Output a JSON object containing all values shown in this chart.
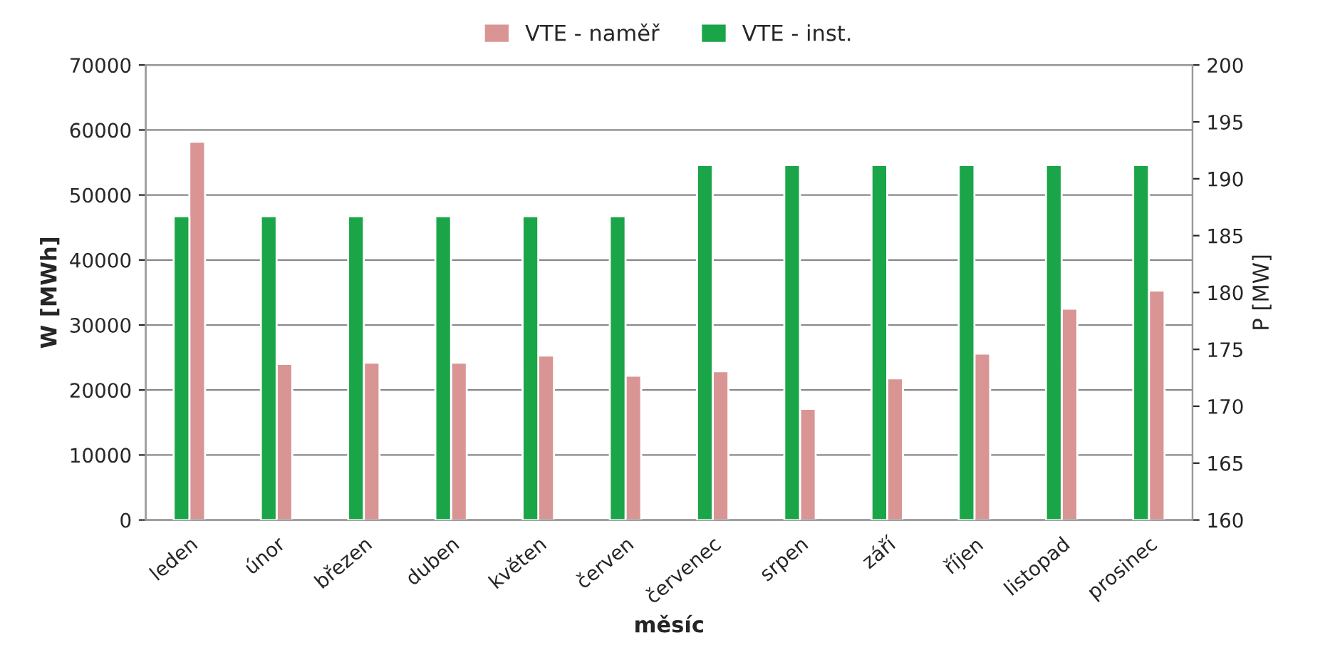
{
  "chart_data": {
    "type": "bar",
    "xlabel": "měsíc",
    "ylabel": "W [MWh]",
    "y2label": "P [MW]",
    "categories": [
      "leden",
      "únor",
      "březen",
      "duben",
      "květen",
      "červen",
      "červenec",
      "srpen",
      "září",
      "říjen",
      "listopad",
      "prosinec"
    ],
    "series": [
      {
        "name": "VTE - naměř",
        "color": "#d99594",
        "values": [
          58200,
          24000,
          24200,
          24200,
          25300,
          22200,
          22900,
          17100,
          21800,
          25600,
          32500,
          35300
        ]
      },
      {
        "name": "VTE - inst.",
        "color": "#1aa548",
        "axis": "y2",
        "values": [
          186.7,
          186.7,
          186.7,
          186.7,
          186.7,
          186.7,
          191.2,
          191.2,
          191.2,
          191.2,
          191.2,
          191.2
        ]
      }
    ],
    "ylim": [
      0,
      70000
    ],
    "yticks": [
      0,
      10000,
      20000,
      30000,
      40000,
      50000,
      60000,
      70000
    ],
    "y2lim": [
      160,
      200
    ],
    "y2ticks": [
      160,
      165,
      170,
      175,
      180,
      185,
      190,
      195,
      200
    ],
    "grid": "y",
    "legend": "top"
  }
}
